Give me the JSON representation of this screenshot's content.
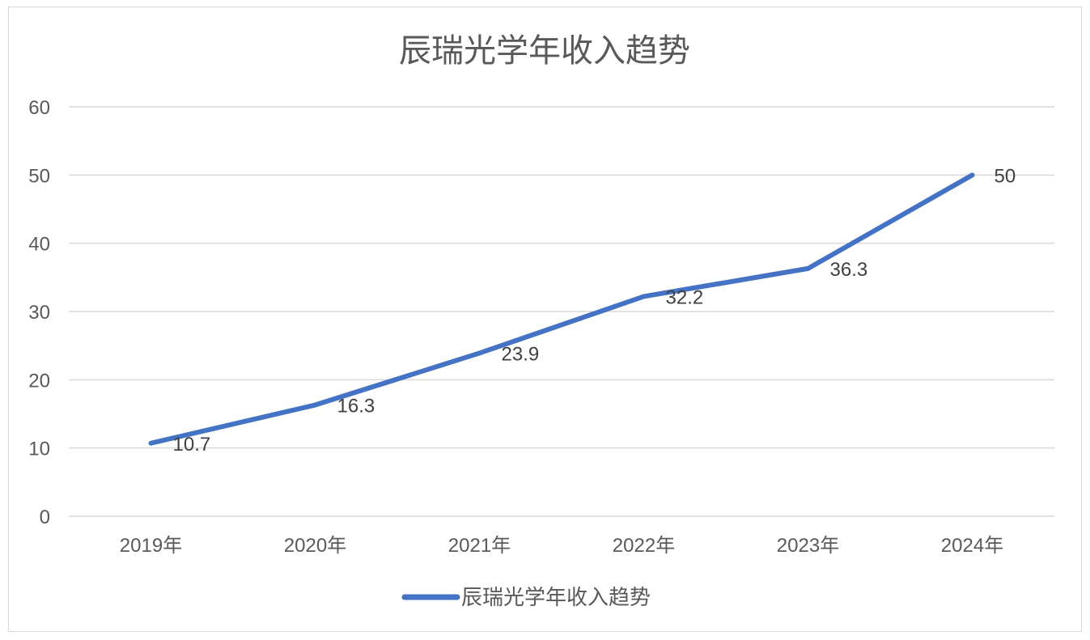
{
  "chart_data": {
    "type": "line",
    "title": "辰瑞光学年收入趋势",
    "categories": [
      "2019年",
      "2020年",
      "2021年",
      "2022年",
      "2023年",
      "2024年"
    ],
    "series": [
      {
        "name": "辰瑞光学年收入趋势",
        "values": [
          10.7,
          16.3,
          23.9,
          32.2,
          36.3,
          50
        ],
        "color": "#4472C4"
      }
    ],
    "data_labels": [
      "10.7",
      "16.3",
      "23.9",
      "32.2",
      "36.3",
      "50"
    ],
    "yticks": [
      "0",
      "10",
      "20",
      "30",
      "40",
      "50",
      "60"
    ],
    "ylim": [
      0,
      60
    ],
    "grid": true,
    "legend": "bottom",
    "colors": {
      "line": "#4472C4",
      "grid": "#d9d9d9",
      "text": "#595959"
    }
  }
}
